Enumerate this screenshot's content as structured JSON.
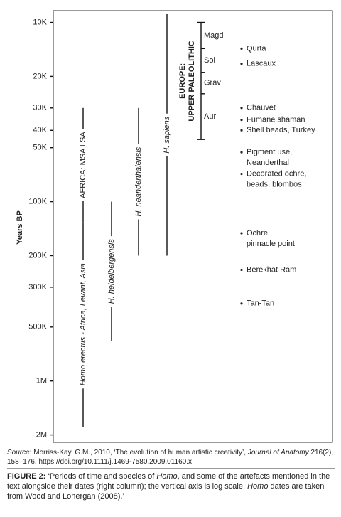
{
  "chart_data": {
    "type": "range",
    "y_label": "Years BP",
    "log_scale": true,
    "ylim": [
      8600,
      2200000
    ],
    "yticks": [
      {
        "value": 10000,
        "label": "10K"
      },
      {
        "value": 20000,
        "label": "20K"
      },
      {
        "value": 30000,
        "label": "30K"
      },
      {
        "value": 40000,
        "label": "40K"
      },
      {
        "value": 50000,
        "label": "50K"
      },
      {
        "value": 100000,
        "label": "100K"
      },
      {
        "value": 200000,
        "label": "200K"
      },
      {
        "value": 300000,
        "label": "300K"
      },
      {
        "value": 500000,
        "label": "500K"
      },
      {
        "value": 1000000,
        "label": "1M"
      },
      {
        "value": 2000000,
        "label": "2M"
      }
    ],
    "ranges": [
      {
        "label": "AFRICA: MSA LSA",
        "italic": false,
        "start": 30000,
        "end": 130000
      },
      {
        "label": "Homo erectus - Africa, Levant, Asia",
        "italic": true,
        "start": 130000,
        "end": 1800000
      },
      {
        "label": "H. heidelbergensis",
        "italic": true,
        "start": 100000,
        "end": 600000
      },
      {
        "label": "H. neanderthalensis",
        "italic": true,
        "start": 30000,
        "end": 200000
      },
      {
        "label": "H. sapiens",
        "italic": true,
        "start": 9000,
        "end": 200000
      }
    ],
    "europe": {
      "label": [
        "EUROPE:",
        "UPPER PALEOLITHIC"
      ],
      "periods": [
        {
          "label": "Magd",
          "start": 10000,
          "end": 14000
        },
        {
          "label": "Sol",
          "start": 14000,
          "end": 19000
        },
        {
          "label": "Grav",
          "start": 19000,
          "end": 25000
        },
        {
          "label": "Aur",
          "start": 25000,
          "end": 45000
        }
      ]
    },
    "artefacts": [
      {
        "label": [
          "Qurta"
        ],
        "value": 14000
      },
      {
        "label": [
          "Lascaux"
        ],
        "value": 17000
      },
      {
        "label": [
          "Chauvet"
        ],
        "value": 30000
      },
      {
        "label": [
          "Fumane shaman"
        ],
        "value": 35000
      },
      {
        "label": [
          "Shell beads, Turkey"
        ],
        "value": 40000
      },
      {
        "label": [
          "Pigment use,",
          "Neanderthal"
        ],
        "value": 53000
      },
      {
        "label": [
          "Decorated ochre,",
          "beads, blombos"
        ],
        "value": 70000
      },
      {
        "label": [
          "Ochre,",
          "pinnacle point"
        ],
        "value": 150000
      },
      {
        "label": [
          "Berekhat Ram"
        ],
        "value": 240000
      },
      {
        "label": [
          "Tan-Tan"
        ],
        "value": 370000
      }
    ]
  },
  "caption": {
    "source": [
      {
        "text": "Source",
        "italic": true
      },
      {
        "text": ": Morriss-Kay, G.M., 2010, ‘The evolution of human artistic creativity’, ",
        "italic": false
      },
      {
        "text": "Journal of Anatomy",
        "italic": true
      },
      {
        "text": " 216(2), 158–176. https://doi.org/10.1111/j.1469-7580.2009.01160.x",
        "italic": false
      }
    ],
    "figure": [
      {
        "text": "FIGURE 2:",
        "bold": true,
        "italic": false
      },
      {
        "text": " ‘Periods of time and species of ",
        "bold": false,
        "italic": false
      },
      {
        "text": "Homo",
        "bold": false,
        "italic": true
      },
      {
        "text": ", and some of the artefacts mentioned in the text alongside their dates (right column); the vertical axis is log scale. ",
        "bold": false,
        "italic": false
      },
      {
        "text": "Homo",
        "bold": false,
        "italic": true
      },
      {
        "text": " dates are taken from Wood and Lonergan (2008).’",
        "bold": false,
        "italic": false
      }
    ]
  }
}
